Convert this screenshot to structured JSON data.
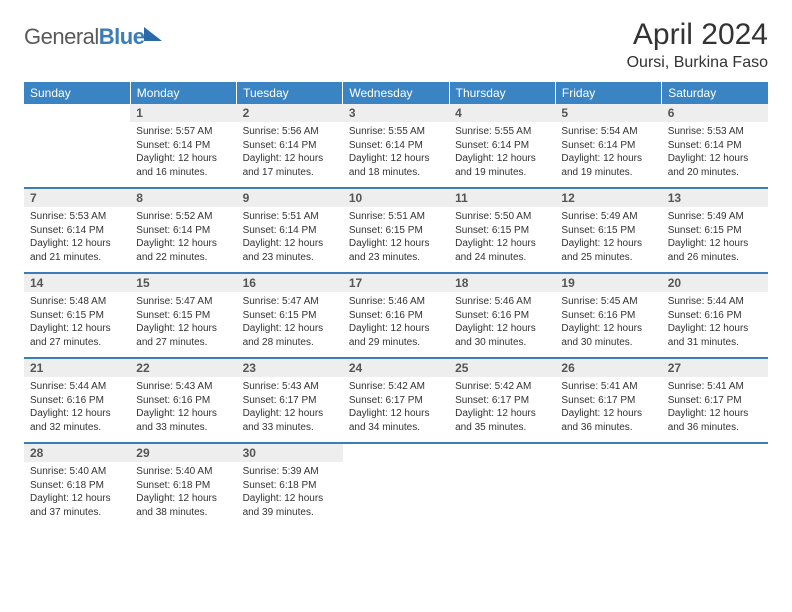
{
  "logo": {
    "part1": "General",
    "part2": "Blue"
  },
  "title": "April 2024",
  "location": "Oursi, Burkina Faso",
  "colors": {
    "header_bg": "#3a84c4",
    "header_text": "#ffffff",
    "daynum_bg": "#eeeeee",
    "daynum_text": "#555555",
    "rule": "#3a7db8",
    "body_text": "#333333",
    "logo_gray": "#5a5a5a",
    "logo_blue": "#3a7db8"
  },
  "day_headers": [
    "Sunday",
    "Monday",
    "Tuesday",
    "Wednesday",
    "Thursday",
    "Friday",
    "Saturday"
  ],
  "weeks": [
    [
      {
        "n": "",
        "sr": "",
        "ss": "",
        "dl": "",
        "empty": true
      },
      {
        "n": "1",
        "sr": "Sunrise: 5:57 AM",
        "ss": "Sunset: 6:14 PM",
        "dl": "Daylight: 12 hours and 16 minutes."
      },
      {
        "n": "2",
        "sr": "Sunrise: 5:56 AM",
        "ss": "Sunset: 6:14 PM",
        "dl": "Daylight: 12 hours and 17 minutes."
      },
      {
        "n": "3",
        "sr": "Sunrise: 5:55 AM",
        "ss": "Sunset: 6:14 PM",
        "dl": "Daylight: 12 hours and 18 minutes."
      },
      {
        "n": "4",
        "sr": "Sunrise: 5:55 AM",
        "ss": "Sunset: 6:14 PM",
        "dl": "Daylight: 12 hours and 19 minutes."
      },
      {
        "n": "5",
        "sr": "Sunrise: 5:54 AM",
        "ss": "Sunset: 6:14 PM",
        "dl": "Daylight: 12 hours and 19 minutes."
      },
      {
        "n": "6",
        "sr": "Sunrise: 5:53 AM",
        "ss": "Sunset: 6:14 PM",
        "dl": "Daylight: 12 hours and 20 minutes."
      }
    ],
    [
      {
        "n": "7",
        "sr": "Sunrise: 5:53 AM",
        "ss": "Sunset: 6:14 PM",
        "dl": "Daylight: 12 hours and 21 minutes."
      },
      {
        "n": "8",
        "sr": "Sunrise: 5:52 AM",
        "ss": "Sunset: 6:14 PM",
        "dl": "Daylight: 12 hours and 22 minutes."
      },
      {
        "n": "9",
        "sr": "Sunrise: 5:51 AM",
        "ss": "Sunset: 6:14 PM",
        "dl": "Daylight: 12 hours and 23 minutes."
      },
      {
        "n": "10",
        "sr": "Sunrise: 5:51 AM",
        "ss": "Sunset: 6:15 PM",
        "dl": "Daylight: 12 hours and 23 minutes."
      },
      {
        "n": "11",
        "sr": "Sunrise: 5:50 AM",
        "ss": "Sunset: 6:15 PM",
        "dl": "Daylight: 12 hours and 24 minutes."
      },
      {
        "n": "12",
        "sr": "Sunrise: 5:49 AM",
        "ss": "Sunset: 6:15 PM",
        "dl": "Daylight: 12 hours and 25 minutes."
      },
      {
        "n": "13",
        "sr": "Sunrise: 5:49 AM",
        "ss": "Sunset: 6:15 PM",
        "dl": "Daylight: 12 hours and 26 minutes."
      }
    ],
    [
      {
        "n": "14",
        "sr": "Sunrise: 5:48 AM",
        "ss": "Sunset: 6:15 PM",
        "dl": "Daylight: 12 hours and 27 minutes."
      },
      {
        "n": "15",
        "sr": "Sunrise: 5:47 AM",
        "ss": "Sunset: 6:15 PM",
        "dl": "Daylight: 12 hours and 27 minutes."
      },
      {
        "n": "16",
        "sr": "Sunrise: 5:47 AM",
        "ss": "Sunset: 6:15 PM",
        "dl": "Daylight: 12 hours and 28 minutes."
      },
      {
        "n": "17",
        "sr": "Sunrise: 5:46 AM",
        "ss": "Sunset: 6:16 PM",
        "dl": "Daylight: 12 hours and 29 minutes."
      },
      {
        "n": "18",
        "sr": "Sunrise: 5:46 AM",
        "ss": "Sunset: 6:16 PM",
        "dl": "Daylight: 12 hours and 30 minutes."
      },
      {
        "n": "19",
        "sr": "Sunrise: 5:45 AM",
        "ss": "Sunset: 6:16 PM",
        "dl": "Daylight: 12 hours and 30 minutes."
      },
      {
        "n": "20",
        "sr": "Sunrise: 5:44 AM",
        "ss": "Sunset: 6:16 PM",
        "dl": "Daylight: 12 hours and 31 minutes."
      }
    ],
    [
      {
        "n": "21",
        "sr": "Sunrise: 5:44 AM",
        "ss": "Sunset: 6:16 PM",
        "dl": "Daylight: 12 hours and 32 minutes."
      },
      {
        "n": "22",
        "sr": "Sunrise: 5:43 AM",
        "ss": "Sunset: 6:16 PM",
        "dl": "Daylight: 12 hours and 33 minutes."
      },
      {
        "n": "23",
        "sr": "Sunrise: 5:43 AM",
        "ss": "Sunset: 6:17 PM",
        "dl": "Daylight: 12 hours and 33 minutes."
      },
      {
        "n": "24",
        "sr": "Sunrise: 5:42 AM",
        "ss": "Sunset: 6:17 PM",
        "dl": "Daylight: 12 hours and 34 minutes."
      },
      {
        "n": "25",
        "sr": "Sunrise: 5:42 AM",
        "ss": "Sunset: 6:17 PM",
        "dl": "Daylight: 12 hours and 35 minutes."
      },
      {
        "n": "26",
        "sr": "Sunrise: 5:41 AM",
        "ss": "Sunset: 6:17 PM",
        "dl": "Daylight: 12 hours and 36 minutes."
      },
      {
        "n": "27",
        "sr": "Sunrise: 5:41 AM",
        "ss": "Sunset: 6:17 PM",
        "dl": "Daylight: 12 hours and 36 minutes."
      }
    ],
    [
      {
        "n": "28",
        "sr": "Sunrise: 5:40 AM",
        "ss": "Sunset: 6:18 PM",
        "dl": "Daylight: 12 hours and 37 minutes."
      },
      {
        "n": "29",
        "sr": "Sunrise: 5:40 AM",
        "ss": "Sunset: 6:18 PM",
        "dl": "Daylight: 12 hours and 38 minutes."
      },
      {
        "n": "30",
        "sr": "Sunrise: 5:39 AM",
        "ss": "Sunset: 6:18 PM",
        "dl": "Daylight: 12 hours and 39 minutes."
      },
      {
        "n": "",
        "sr": "",
        "ss": "",
        "dl": "",
        "empty": true
      },
      {
        "n": "",
        "sr": "",
        "ss": "",
        "dl": "",
        "empty": true
      },
      {
        "n": "",
        "sr": "",
        "ss": "",
        "dl": "",
        "empty": true
      },
      {
        "n": "",
        "sr": "",
        "ss": "",
        "dl": "",
        "empty": true
      }
    ]
  ]
}
